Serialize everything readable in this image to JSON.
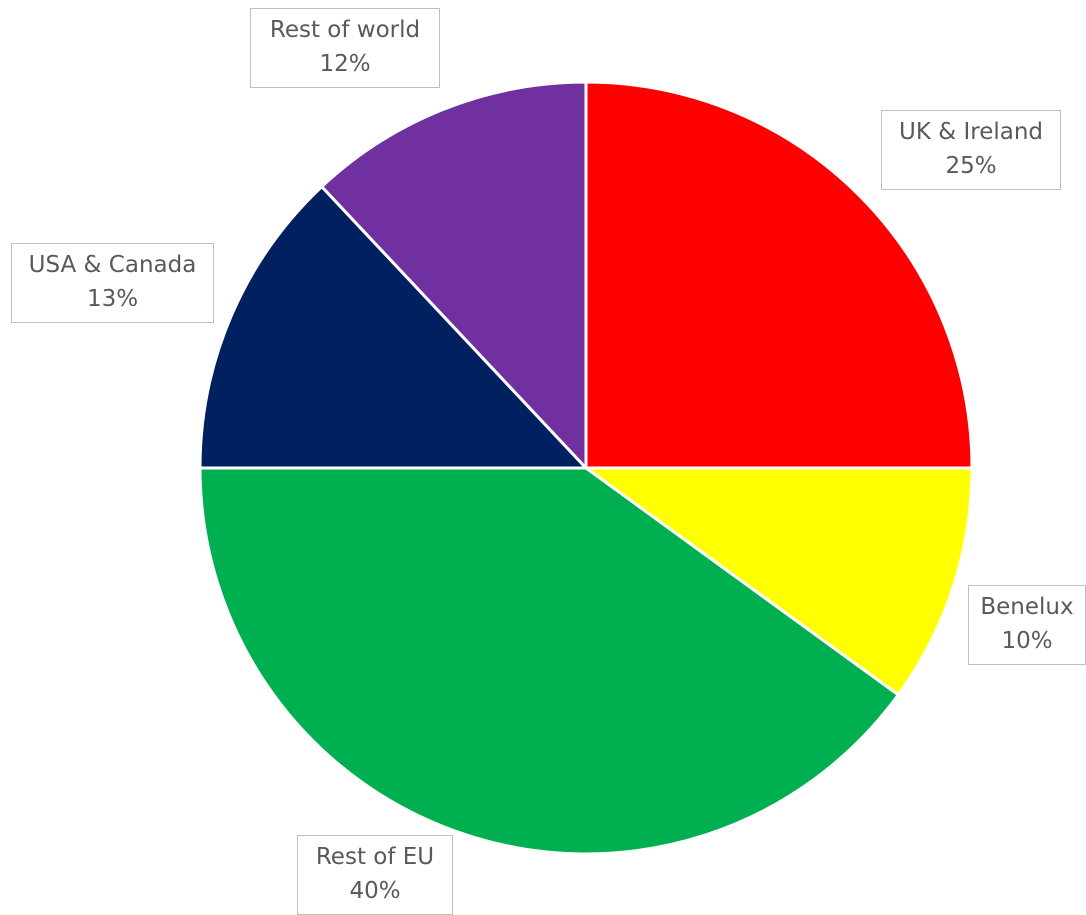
{
  "chart_data": {
    "type": "pie",
    "title": "",
    "start_angle_deg": 0,
    "direction": "clockwise",
    "legend": "none",
    "slices": [
      {
        "name": "UK & Ireland",
        "value": 25,
        "percent_label": "25%",
        "color": "#ff0000"
      },
      {
        "name": "Benelux",
        "value": 10,
        "percent_label": "10%",
        "color": "#ffff00"
      },
      {
        "name": "Rest of EU",
        "value": 40,
        "percent_label": "40%",
        "color": "#00b050"
      },
      {
        "name": "USA & Canada",
        "value": 13,
        "percent_label": "13%",
        "color": "#002060"
      },
      {
        "name": "Rest of world",
        "value": 12,
        "percent_label": "12%",
        "color": "#7030a0"
      }
    ]
  }
}
